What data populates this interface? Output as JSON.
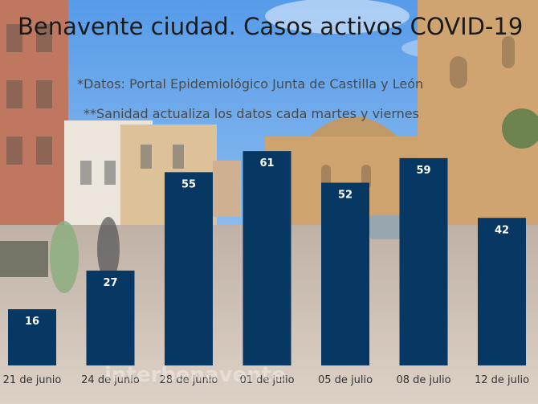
{
  "chart_data": {
    "type": "bar",
    "title": "Benavente ciudad. Casos activos COVID-19",
    "subtitle_1": "*Datos: Portal Epidemiológico Junta de Castilla y León",
    "subtitle_2": "**Sanidad actualiza los datos cada martes y viernes",
    "categories": [
      "21 de junio",
      "24 de junio",
      "28 de junio",
      "01 de julio",
      "05 de julio",
      "08 de julio",
      "12 de julio"
    ],
    "values": [
      16,
      27,
      55,
      61,
      52,
      59,
      42
    ],
    "xlabel": "",
    "ylabel": "",
    "ylim": [
      0,
      80
    ],
    "bar_color": "#073763",
    "label_color": "#ffffff",
    "title_color": "#1a1a1a",
    "subtitle_color": "#4a4a4a"
  },
  "watermark": "interbenavente"
}
